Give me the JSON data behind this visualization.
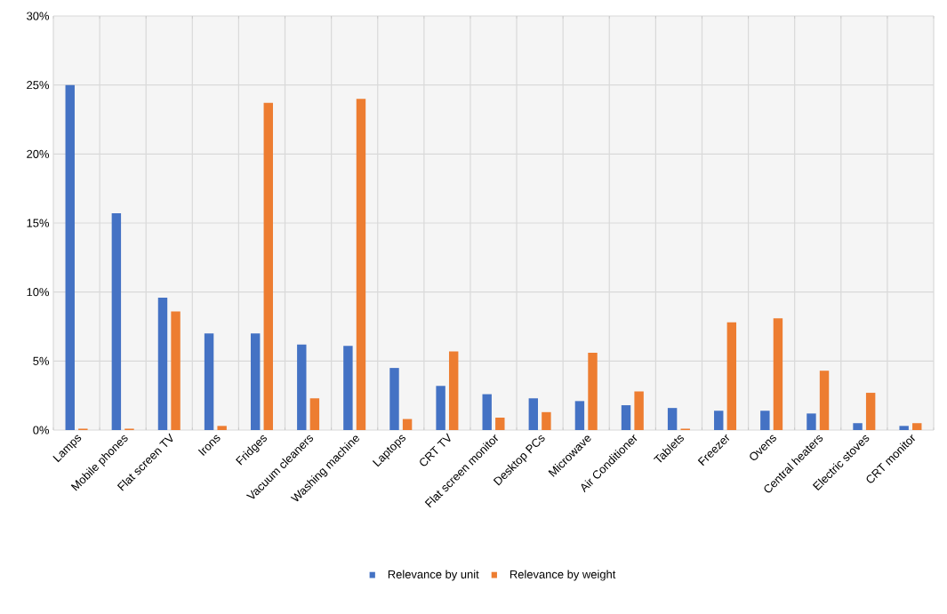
{
  "chart_data": {
    "type": "bar",
    "categories": [
      "Lamps",
      "Mobile phones",
      "Flat screen TV",
      "Irons",
      "Fridges",
      "Vacuum cleaners",
      "Washing machine",
      "Laptops",
      "CRT TV",
      "Flat screen monitor",
      "Desktop PCs",
      "Microwave",
      "Air Conditioner",
      "Tablets",
      "Freezer",
      "Ovens",
      "Central heaters",
      "Electric stoves",
      "CRT monitor"
    ],
    "series": [
      {
        "name": "Relevance by unit",
        "color": "#4472c4",
        "values": [
          25.0,
          15.7,
          9.6,
          7.0,
          7.0,
          6.2,
          6.1,
          4.5,
          3.2,
          2.6,
          2.3,
          2.1,
          1.8,
          1.6,
          1.4,
          1.4,
          1.2,
          0.5,
          0.3
        ]
      },
      {
        "name": "Relevance by weight",
        "color": "#ed7d31",
        "values": [
          0.1,
          0.1,
          8.6,
          0.3,
          23.7,
          2.3,
          24.0,
          0.8,
          5.7,
          0.9,
          1.3,
          5.6,
          2.8,
          0.1,
          7.8,
          8.1,
          4.3,
          2.7,
          0.5
        ]
      }
    ],
    "ylim": [
      0,
      30
    ],
    "yticks": [
      {
        "value": 0,
        "label": "0%"
      },
      {
        "value": 5,
        "label": "5%"
      },
      {
        "value": 10,
        "label": "10%"
      },
      {
        "value": 15,
        "label": "15%"
      },
      {
        "value": 20,
        "label": "20%"
      },
      {
        "value": 25,
        "label": "25%"
      },
      {
        "value": 30,
        "label": "30%"
      }
    ],
    "grid": true,
    "legend": "bottom"
  }
}
